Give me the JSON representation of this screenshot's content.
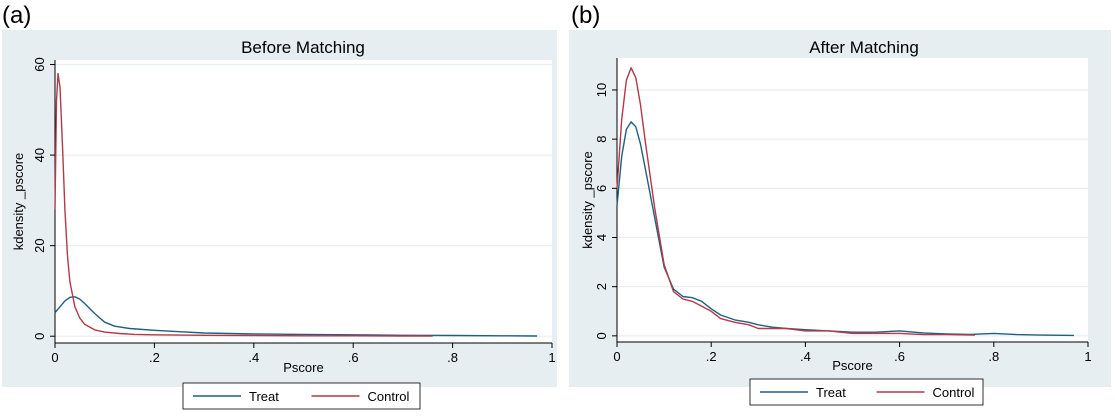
{
  "panels": [
    {
      "letter": "(a)"
    },
    {
      "letter": "(b)"
    }
  ],
  "colors": {
    "outer_bg": "#e6eef2",
    "plot_bg": "#ffffff",
    "grid": "#e6eef2",
    "treat": "#1f5f80",
    "control": "#b23a48",
    "axis": "#000000"
  },
  "chart_data": [
    {
      "type": "line",
      "title": "Before Matching",
      "xlabel": "Pscore",
      "ylabel": "kdensity _pscore",
      "xlim": [
        0,
        1
      ],
      "ylim": [
        -1.5,
        61
      ],
      "xticks": [
        0,
        0.2,
        0.4,
        0.6,
        0.8,
        1
      ],
      "xtick_labels": [
        "0",
        ".2",
        ".4",
        ".6",
        ".8",
        "1"
      ],
      "yticks": [
        0,
        20,
        40,
        60
      ],
      "ytick_labels": [
        "0",
        "20",
        "40",
        "60"
      ],
      "grid": true,
      "legend": "bottom",
      "series": [
        {
          "name": "Treat",
          "color_key": "treat",
          "x": [
            0.0,
            0.01,
            0.02,
            0.03,
            0.04,
            0.05,
            0.06,
            0.08,
            0.1,
            0.12,
            0.15,
            0.2,
            0.25,
            0.3,
            0.4,
            0.5,
            0.6,
            0.7,
            0.8,
            0.9,
            0.97
          ],
          "y": [
            5.2,
            6.5,
            7.8,
            8.6,
            8.7,
            8.2,
            7.2,
            5.0,
            3.1,
            2.2,
            1.7,
            1.3,
            1.0,
            0.7,
            0.5,
            0.4,
            0.3,
            0.2,
            0.15,
            0.1,
            0.05
          ]
        },
        {
          "name": "Control",
          "color_key": "control",
          "x": [
            0.0,
            0.003,
            0.006,
            0.01,
            0.015,
            0.02,
            0.025,
            0.03,
            0.04,
            0.05,
            0.06,
            0.08,
            0.1,
            0.13,
            0.16,
            0.2,
            0.3,
            0.4,
            0.5,
            0.6,
            0.7,
            0.76
          ],
          "y": [
            28.0,
            52.0,
            58.0,
            55.0,
            42.0,
            28.0,
            18.0,
            12.0,
            6.5,
            4.0,
            2.6,
            1.4,
            0.9,
            0.6,
            0.4,
            0.3,
            0.2,
            0.15,
            0.1,
            0.08,
            0.05,
            0.03
          ]
        }
      ]
    },
    {
      "type": "line",
      "title": "After Matching",
      "xlabel": "Pscore",
      "ylabel": "kdensity _pscore",
      "xlim": [
        0,
        1
      ],
      "ylim": [
        -0.25,
        11.3
      ],
      "xticks": [
        0,
        0.2,
        0.4,
        0.6,
        0.8,
        1
      ],
      "xtick_labels": [
        "0",
        ".2",
        ".4",
        ".6",
        ".8",
        "1"
      ],
      "yticks": [
        0,
        2,
        4,
        6,
        8,
        10
      ],
      "ytick_labels": [
        "0",
        "2",
        "4",
        "6",
        "8",
        "10"
      ],
      "grid": true,
      "legend": "bottom",
      "series": [
        {
          "name": "Treat",
          "color_key": "treat",
          "x": [
            0.0,
            0.01,
            0.02,
            0.03,
            0.04,
            0.05,
            0.06,
            0.08,
            0.1,
            0.12,
            0.14,
            0.16,
            0.18,
            0.2,
            0.22,
            0.25,
            0.28,
            0.3,
            0.33,
            0.36,
            0.4,
            0.45,
            0.5,
            0.55,
            0.6,
            0.65,
            0.7,
            0.75,
            0.8,
            0.85,
            0.9,
            0.97
          ],
          "y": [
            5.3,
            7.3,
            8.4,
            8.7,
            8.5,
            7.8,
            6.8,
            4.8,
            2.8,
            1.9,
            1.6,
            1.55,
            1.4,
            1.1,
            0.85,
            0.65,
            0.55,
            0.45,
            0.35,
            0.3,
            0.25,
            0.2,
            0.15,
            0.15,
            0.2,
            0.12,
            0.08,
            0.06,
            0.1,
            0.05,
            0.03,
            0.02
          ]
        },
        {
          "name": "Control",
          "color_key": "control",
          "x": [
            0.0,
            0.01,
            0.02,
            0.03,
            0.04,
            0.05,
            0.06,
            0.08,
            0.1,
            0.12,
            0.14,
            0.16,
            0.18,
            0.2,
            0.22,
            0.25,
            0.28,
            0.3,
            0.33,
            0.36,
            0.4,
            0.45,
            0.5,
            0.55,
            0.6,
            0.65,
            0.7,
            0.76
          ],
          "y": [
            6.0,
            8.8,
            10.4,
            10.9,
            10.5,
            9.4,
            7.9,
            5.2,
            2.9,
            1.8,
            1.5,
            1.4,
            1.2,
            1.0,
            0.7,
            0.55,
            0.45,
            0.3,
            0.3,
            0.3,
            0.2,
            0.2,
            0.1,
            0.1,
            0.1,
            0.05,
            0.05,
            0.03
          ]
        }
      ]
    }
  ]
}
